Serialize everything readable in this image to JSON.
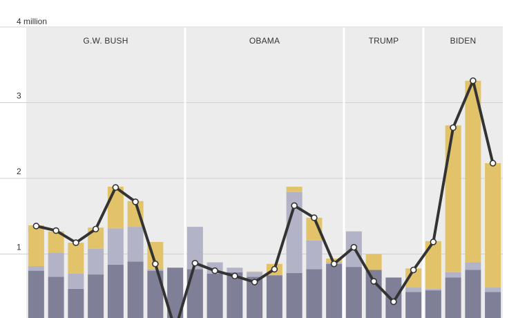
{
  "chart_data": {
    "type": "bar",
    "stacked": true,
    "with_line_overlay": true,
    "y_unit_label": "4 million",
    "yticks": [
      {
        "value": 1,
        "label": "1"
      },
      {
        "value": 2,
        "label": "2"
      },
      {
        "value": 3,
        "label": "3"
      },
      {
        "value": 4,
        "label": "4 million"
      }
    ],
    "ylim": [
      0,
      4
    ],
    "grid": true,
    "legend": "none",
    "eras": [
      {
        "label": "G.W. BUSH",
        "start_index": 0,
        "end_index": 7
      },
      {
        "label": "OBAMA",
        "start_index": 8,
        "end_index": 15
      },
      {
        "label": "TRUMP",
        "start_index": 16,
        "end_index": 19
      },
      {
        "label": "BIDEN",
        "start_index": 20,
        "end_index": 23
      }
    ],
    "colors": {
      "series_bottom": "#7f8098",
      "series_middle": "#b3b3c8",
      "series_top": "#e2c36a",
      "line": "#333333",
      "era_band": "#ececec",
      "gridline": "#cfcfcf"
    },
    "series": [
      {
        "values": [
          0.78,
          0.7,
          0.54,
          0.73,
          0.86,
          0.9,
          0.78,
          0.82,
          0.8,
          0.74,
          0.76,
          0.7,
          0.72,
          0.75,
          0.8,
          0.87,
          0.83,
          0.79,
          0.69,
          0.5,
          0.52,
          0.69,
          0.79,
          0.5
        ]
      },
      {
        "values": [
          0.06,
          0.32,
          0.2,
          0.34,
          0.48,
          0.46,
          0.02,
          0.0,
          0.56,
          0.15,
          0.06,
          0.06,
          0.0,
          1.07,
          0.38,
          0.02,
          0.47,
          0.0,
          0.0,
          0.06,
          0.02,
          0.07,
          0.1,
          0.06
        ]
      },
      {
        "values": [
          0.54,
          0.28,
          0.41,
          0.28,
          0.55,
          0.34,
          0.36,
          0.0,
          0.0,
          0.0,
          0.0,
          0.01,
          0.15,
          0.07,
          0.3,
          0.05,
          0.0,
          0.21,
          0.0,
          0.25,
          0.63,
          1.94,
          2.4,
          1.64
        ]
      }
    ],
    "line_values": [
      1.37,
      1.31,
      1.15,
      1.33,
      1.88,
      1.69,
      0.87,
      0.0,
      0.88,
      0.78,
      0.71,
      0.63,
      0.8,
      1.64,
      1.48,
      0.87,
      1.09,
      0.64,
      0.37,
      0.79,
      1.16,
      2.67,
      3.29,
      2.2
    ]
  }
}
